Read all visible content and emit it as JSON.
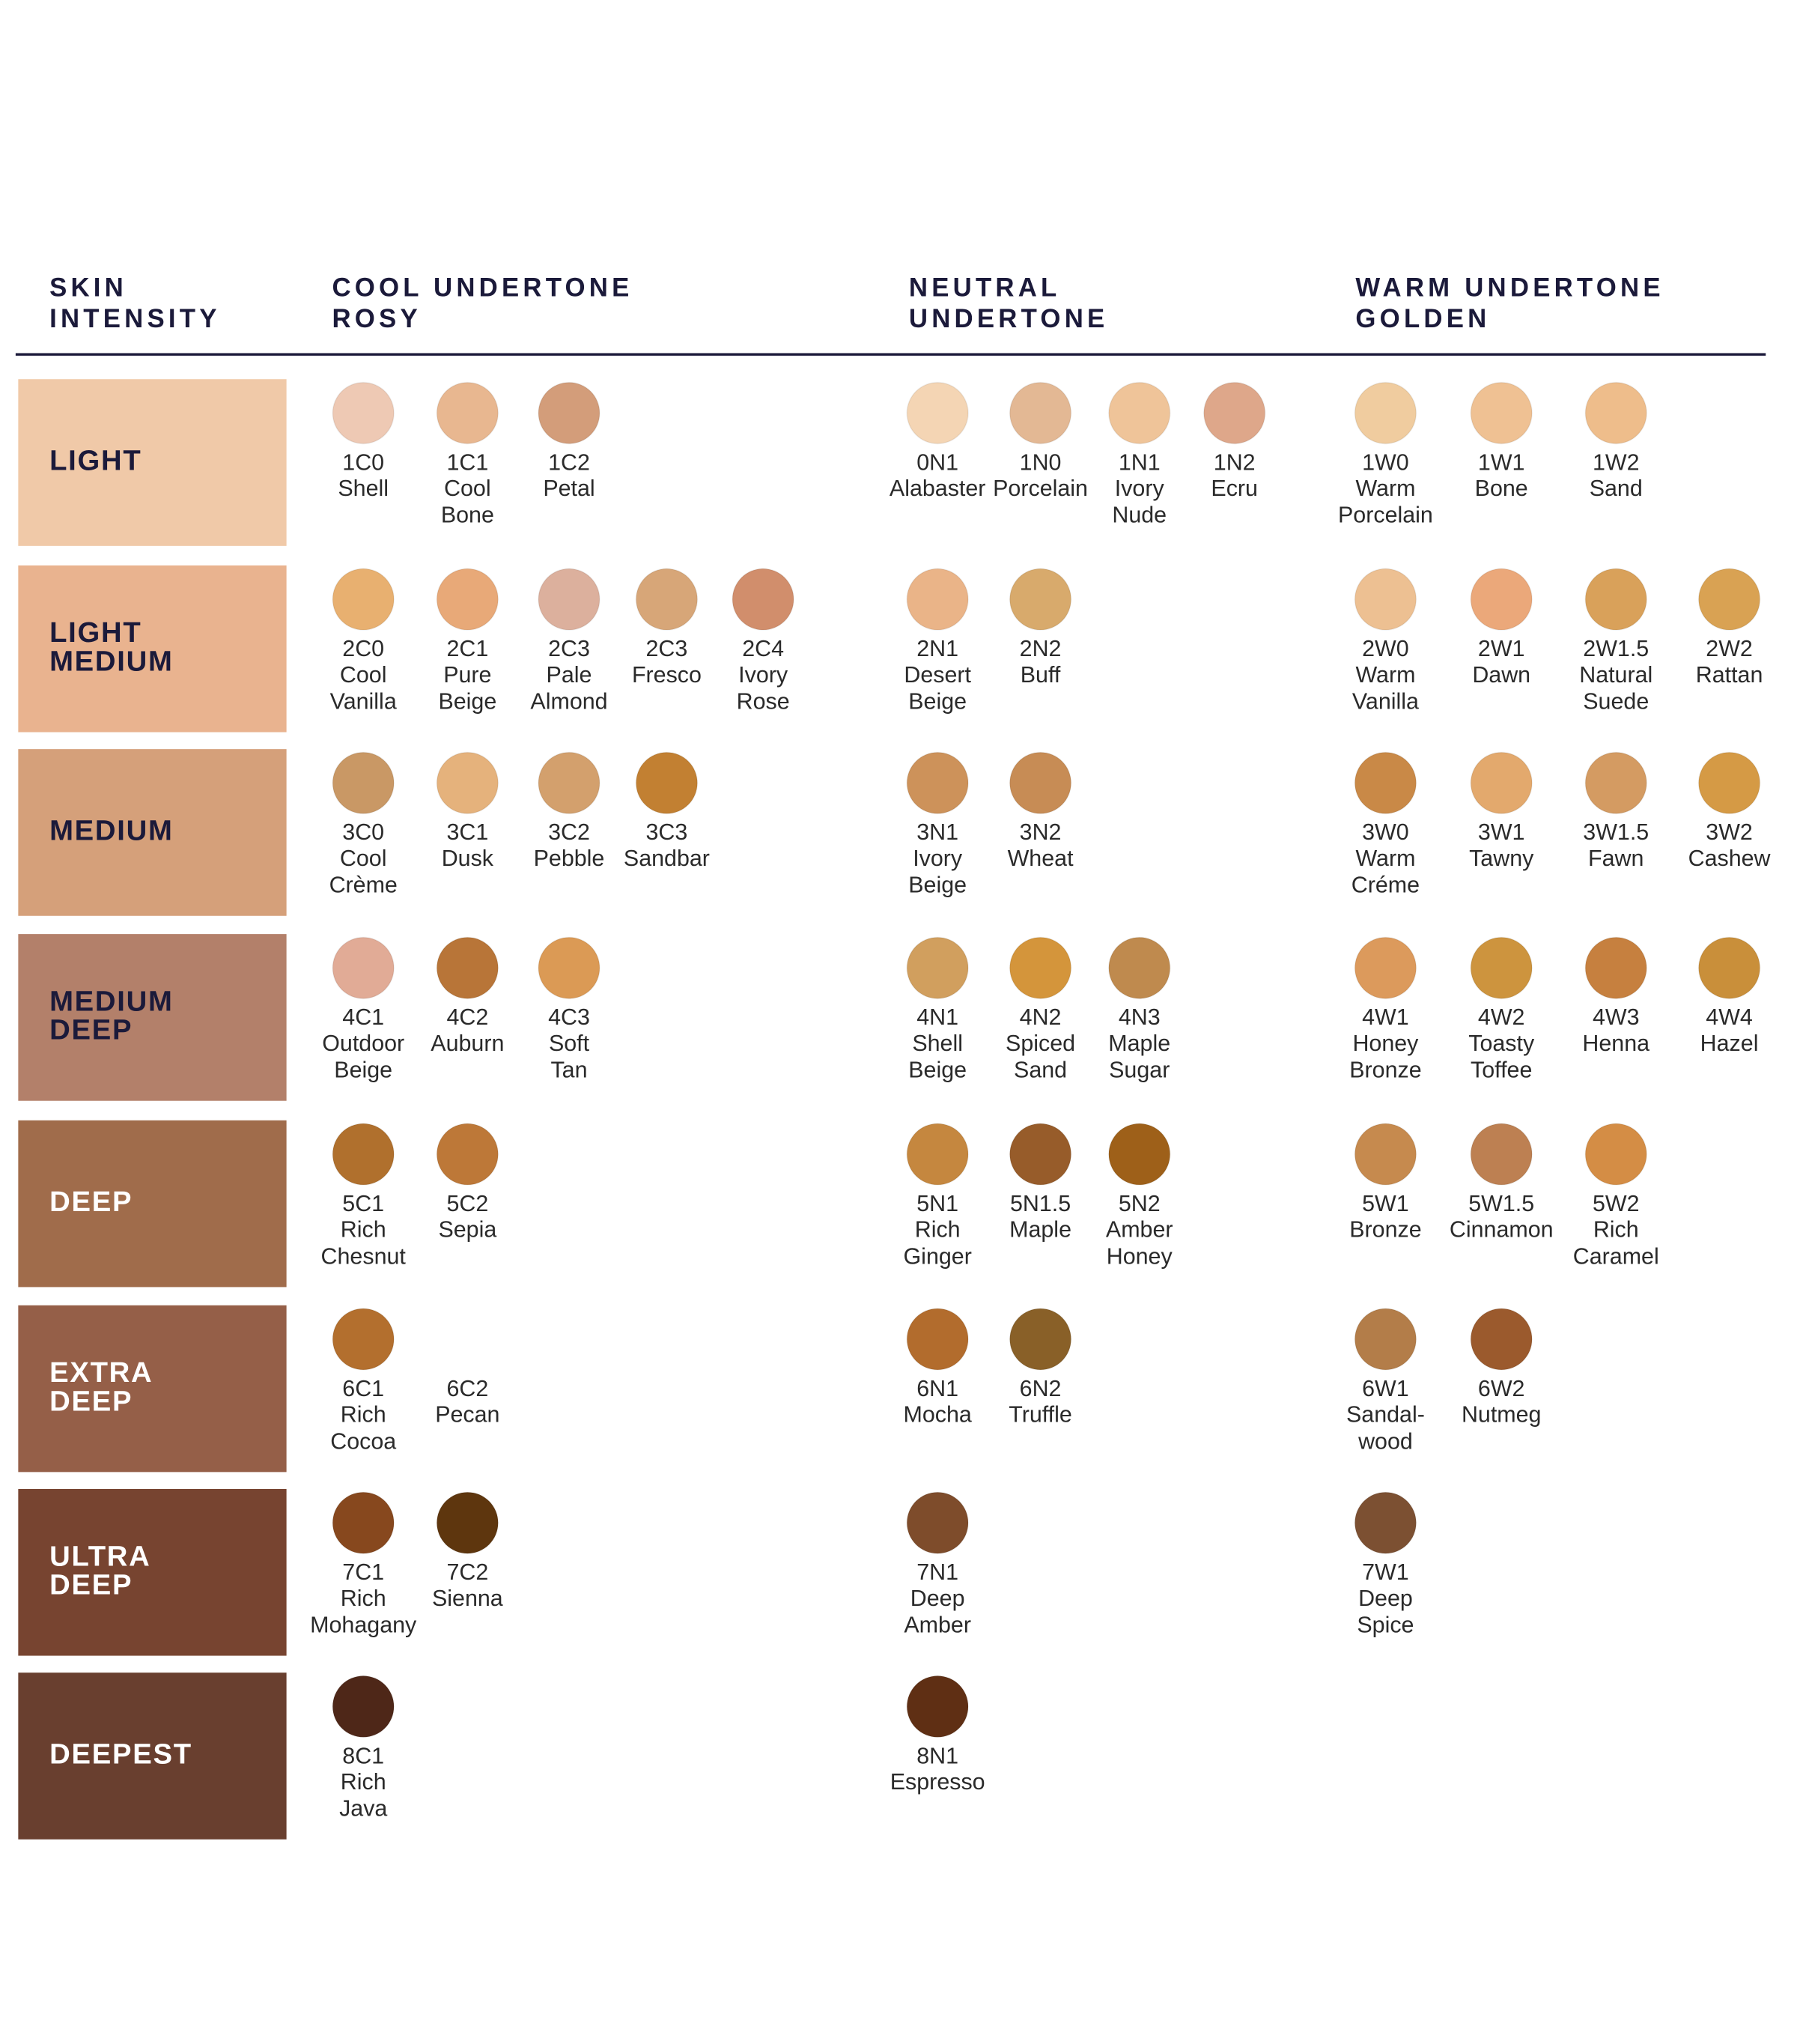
{
  "header": {
    "intensity": [
      "SKIN",
      "INTENSITY"
    ],
    "cool": [
      "COOL UNDERTONE",
      "ROSY"
    ],
    "neutral": [
      "NEUTRAL",
      "UNDERTONE"
    ],
    "warm": [
      "WARM UNDERTONE",
      "GOLDEN"
    ]
  },
  "rows": [
    {
      "label": [
        "LIGHT"
      ],
      "color": "#f0c9a8",
      "text_color": "#1b1a3a",
      "cool": [
        {
          "code": "1C0",
          "name": [
            "Shell"
          ],
          "color": "#eec9b4"
        },
        {
          "code": "1C1",
          "name": [
            "Cool",
            "Bone"
          ],
          "color": "#e8b790"
        },
        {
          "code": "1C2",
          "name": [
            "Petal"
          ],
          "color": "#d39d7a"
        }
      ],
      "neutral": [
        {
          "code": "0N1",
          "name": [
            "Alabaster"
          ],
          "color": "#f4d5b4"
        },
        {
          "code": "1N0",
          "name": [
            "Porcelain"
          ],
          "color": "#e3b894"
        },
        {
          "code": "1N1",
          "name": [
            "Ivory",
            "Nude"
          ],
          "color": "#efc499"
        },
        {
          "code": "1N2",
          "name": [
            "Ecru"
          ],
          "color": "#dea78a"
        }
      ],
      "warm": [
        {
          "code": "1W0",
          "name": [
            "Warm",
            "Porcelain"
          ],
          "color": "#f0cc9f"
        },
        {
          "code": "1W1",
          "name": [
            "Bone"
          ],
          "color": "#efc193"
        },
        {
          "code": "1W2",
          "name": [
            "Sand"
          ],
          "color": "#eebd8b"
        }
      ]
    },
    {
      "label": [
        "LIGHT",
        "MEDIUM"
      ],
      "color": "#e9b38f",
      "text_color": "#1b1a3a",
      "cool": [
        {
          "code": "2C0",
          "name": [
            "Cool",
            "Vanilla"
          ],
          "color": "#e8b070"
        },
        {
          "code": "2C1",
          "name": [
            "Pure",
            "Beige"
          ],
          "color": "#e8a978"
        },
        {
          "code": "2C3",
          "name": [
            "Pale",
            "Almond"
          ],
          "color": "#dcb09d"
        },
        {
          "code": "2C3",
          "name": [
            "Fresco"
          ],
          "color": "#d7a678"
        },
        {
          "code": "2C4",
          "name": [
            "Ivory",
            "Rose"
          ],
          "color": "#d18e6c"
        }
      ],
      "neutral": [
        {
          "code": "2N1",
          "name": [
            "Desert",
            "Beige"
          ],
          "color": "#eab488"
        },
        {
          "code": "2N2",
          "name": [
            "Buff"
          ],
          "color": "#d8aa6c"
        }
      ],
      "warm": [
        {
          "code": "2W0",
          "name": [
            "Warm",
            "Vanilla"
          ],
          "color": "#edc092"
        },
        {
          "code": "2W1",
          "name": [
            "Dawn"
          ],
          "color": "#eba87a"
        },
        {
          "code": "2W1.5",
          "name": [
            "Natural",
            "Suede"
          ],
          "color": "#d9a15a"
        },
        {
          "code": "2W2",
          "name": [
            "Rattan"
          ],
          "color": "#d9a253"
        }
      ]
    },
    {
      "label": [
        "MEDIUM"
      ],
      "color": "#d5a07a",
      "text_color": "#1b1a3a",
      "cool": [
        {
          "code": "3C0",
          "name": [
            "Cool",
            "Crème"
          ],
          "color": "#c99865"
        },
        {
          "code": "3C1",
          "name": [
            "Dusk"
          ],
          "color": "#e5b27c"
        },
        {
          "code": "3C2",
          "name": [
            "Pebble"
          ],
          "color": "#d3a06d"
        },
        {
          "code": "3C3",
          "name": [
            "Sandbar"
          ],
          "color": "#c28032"
        }
      ],
      "neutral": [
        {
          "code": "3N1",
          "name": [
            "Ivory",
            "Beige"
          ],
          "color": "#cd925a"
        },
        {
          "code": "3N2",
          "name": [
            "Wheat"
          ],
          "color": "#c78c55"
        }
      ],
      "warm": [
        {
          "code": "3W0",
          "name": [
            "Warm",
            "Créme"
          ],
          "color": "#c98947"
        },
        {
          "code": "3W1",
          "name": [
            "Tawny"
          ],
          "color": "#e3a96d"
        },
        {
          "code": "3W1.5",
          "name": [
            "Fawn"
          ],
          "color": "#d49b62"
        },
        {
          "code": "3W2",
          "name": [
            "Cashew"
          ],
          "color": "#d59a45"
        }
      ]
    },
    {
      "label": [
        "MEDIUM",
        "DEEP"
      ],
      "color": "#b3806a",
      "text_color": "#1b1a3a",
      "cool": [
        {
          "code": "4C1",
          "name": [
            "Outdoor",
            "Beige"
          ],
          "color": "#e1ab96"
        },
        {
          "code": "4C2",
          "name": [
            "Auburn"
          ],
          "color": "#b87538"
        },
        {
          "code": "4C3",
          "name": [
            "Soft",
            "Tan"
          ],
          "color": "#db9a55"
        }
      ],
      "neutral": [
        {
          "code": "4N1",
          "name": [
            "Shell",
            "Beige"
          ],
          "color": "#d19f5e"
        },
        {
          "code": "4N2",
          "name": [
            "Spiced",
            "Sand"
          ],
          "color": "#d4953b"
        },
        {
          "code": "4N3",
          "name": [
            "Maple",
            "Sugar"
          ],
          "color": "#bf8a4e"
        }
      ],
      "warm": [
        {
          "code": "4W1",
          "name": [
            "Honey",
            "Bronze"
          ],
          "color": "#dc9a5c"
        },
        {
          "code": "4W2",
          "name": [
            "Toasty",
            "Toffee"
          ],
          "color": "#cd943e"
        },
        {
          "code": "4W3",
          "name": [
            "Henna"
          ],
          "color": "#c6803f"
        },
        {
          "code": "4W4",
          "name": [
            "Hazel"
          ],
          "color": "#c98f3a"
        }
      ]
    },
    {
      "label": [
        "DEEP"
      ],
      "color": "#a06c4b",
      "text_color": "#ffffff",
      "cool": [
        {
          "code": "5C1",
          "name": [
            "Rich",
            "Chesnut"
          ],
          "color": "#b0702d"
        },
        {
          "code": "5C2",
          "name": [
            "Sepia"
          ],
          "color": "#bd7838"
        }
      ],
      "neutral": [
        {
          "code": "5N1",
          "name": [
            "Rich",
            "Ginger"
          ],
          "color": "#c5873f"
        },
        {
          "code": "5N1.5",
          "name": [
            "Maple"
          ],
          "color": "#975c2a"
        },
        {
          "code": "5N2",
          "name": [
            "Amber",
            "Honey"
          ],
          "color": "#9e6019"
        }
      ],
      "warm": [
        {
          "code": "5W1",
          "name": [
            "Bronze"
          ],
          "color": "#c68a4e"
        },
        {
          "code": "5W1.5",
          "name": [
            "Cinnamon"
          ],
          "color": "#bd8052"
        },
        {
          "code": "5W2",
          "name": [
            "Rich",
            "Caramel"
          ],
          "color": "#d48d45"
        }
      ]
    },
    {
      "label": [
        "EXTRA",
        "DEEP"
      ],
      "color": "#955f48",
      "text_color": "#ffffff",
      "cool": [
        {
          "code": "6C1",
          "name": [
            "Rich",
            "Cocoa"
          ],
          "color": "#b36f2e"
        },
        {
          "code": "6C2",
          "name": [
            "Pecan"
          ]
        }
      ],
      "neutral": [
        {
          "code": "6N1",
          "name": [
            "Mocha"
          ],
          "color": "#b26c2d"
        },
        {
          "code": "6N2",
          "name": [
            "Truffle"
          ],
          "color": "#896028"
        }
      ],
      "warm": [
        {
          "code": "6W1",
          "name": [
            "Sandal-",
            "wood"
          ],
          "color": "#b37d49"
        },
        {
          "code": "6W2",
          "name": [
            "Nutmeg"
          ],
          "color": "#9b5a2d"
        }
      ]
    },
    {
      "label": [
        "ULTRA",
        "DEEP"
      ],
      "color": "#774430",
      "text_color": "#ffffff",
      "cool": [
        {
          "code": "7C1",
          "name": [
            "Rich",
            "Mohagany"
          ],
          "color": "#87481e"
        },
        {
          "code": "7C2",
          "name": [
            "Sienna"
          ],
          "color": "#5e360e"
        }
      ],
      "neutral": [
        {
          "code": "7N1",
          "name": [
            "Deep",
            "Amber"
          ],
          "color": "#7e4c2b"
        }
      ],
      "warm": [
        {
          "code": "7W1",
          "name": [
            "Deep",
            "Spice"
          ],
          "color": "#7c5032"
        }
      ]
    },
    {
      "label": [
        "DEEPEST"
      ],
      "color": "#693f2f",
      "text_color": "#ffffff",
      "cool": [
        {
          "code": "8C1",
          "name": [
            "Rich",
            "Java"
          ],
          "color": "#4e2718"
        }
      ],
      "neutral": [
        {
          "code": "8N1",
          "name": [
            "Espresso"
          ],
          "color": "#5f2f14"
        }
      ],
      "warm": []
    }
  ]
}
